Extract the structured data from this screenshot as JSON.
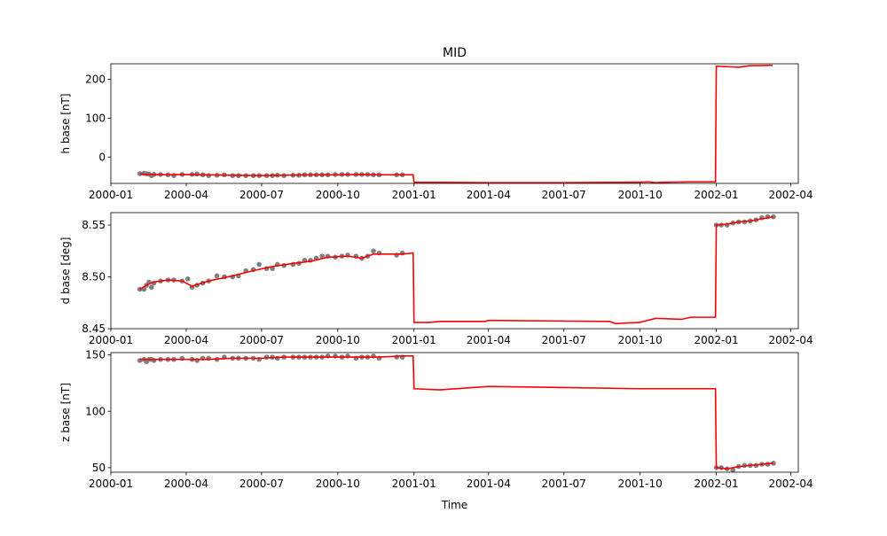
{
  "title": "MID",
  "xlabel": "Time",
  "x_ticks": [
    "2000-01",
    "2000-04",
    "2000-07",
    "2000-10",
    "2001-01",
    "2001-04",
    "2001-07",
    "2001-10",
    "2002-01",
    "2002-04"
  ],
  "colors": {
    "scatter": "#808080",
    "line": "#ff0000",
    "axes": "#000000"
  },
  "chart_data": [
    {
      "type": "scatter",
      "panel": "h",
      "ylabel": "h base [nT]",
      "xlim": [
        "2000-01-01",
        "2002-04-10"
      ],
      "ylim": [
        -68,
        240
      ],
      "yticks": [
        0,
        100,
        200
      ],
      "ytick_labels": [
        "0",
        "100",
        "200"
      ],
      "grid": false,
      "series": [
        {
          "kind": "points",
          "x": [
            "2000-02-05",
            "2000-02-10",
            "2000-02-13",
            "2000-02-16",
            "2000-02-19",
            "2000-02-22",
            "2000-03-01",
            "2000-03-10",
            "2000-03-17",
            "2000-03-27",
            "2000-04-08",
            "2000-04-14",
            "2000-04-21",
            "2000-04-28",
            "2000-05-08",
            "2000-05-17",
            "2000-05-27",
            "2000-06-03",
            "2000-06-12",
            "2000-06-21",
            "2000-06-28",
            "2000-07-07",
            "2000-07-14",
            "2000-07-20",
            "2000-07-28",
            "2000-08-08",
            "2000-08-15",
            "2000-08-22",
            "2000-08-29",
            "2000-09-05",
            "2000-09-12",
            "2000-09-19",
            "2000-09-28",
            "2000-10-06",
            "2000-10-13",
            "2000-10-23",
            "2000-10-30",
            "2000-11-06",
            "2000-11-13",
            "2000-11-20",
            "2000-12-11",
            "2000-12-18"
          ],
          "y": [
            -43,
            -42,
            -43,
            -44,
            -48,
            -45,
            -45,
            -46,
            -48,
            -45,
            -45,
            -44,
            -46,
            -48,
            -47,
            -46,
            -48,
            -48,
            -48,
            -48,
            -48,
            -48,
            -48,
            -47,
            -48,
            -47,
            -47,
            -46,
            -46,
            -46,
            -46,
            -46,
            -45,
            -45,
            -45,
            -45,
            -45,
            -45,
            -46,
            -46,
            -46,
            -46
          ]
        },
        {
          "kind": "line",
          "x": [
            "2000-02-05",
            "2000-02-13",
            "2000-02-22",
            "2000-03-10",
            "2000-03-27",
            "2000-04-21",
            "2000-05-27",
            "2000-06-28",
            "2000-07-28",
            "2000-08-29",
            "2000-09-28",
            "2000-10-30",
            "2000-11-20",
            "2000-12-18",
            "2000-12-31",
            "2001-01-01",
            "2001-04-01",
            "2001-07-01",
            "2001-09-25",
            "2001-10-01",
            "2001-10-10",
            "2001-10-20",
            "2001-11-01",
            "2001-12-01",
            "2001-12-31",
            "2002-01-01",
            "2002-01-10",
            "2002-01-20",
            "2002-01-28",
            "2002-02-10",
            "2002-03-10"
          ],
          "y": [
            -44,
            -45,
            -45,
            -46,
            -45,
            -46,
            -47,
            -48,
            -47,
            -46,
            -46,
            -45,
            -46,
            -46,
            -46,
            -65,
            -66,
            -66,
            -65,
            -65,
            -64,
            -66,
            -65,
            -64,
            -64,
            234,
            233,
            232,
            231,
            235,
            236
          ]
        }
      ]
    },
    {
      "type": "scatter",
      "panel": "d",
      "ylabel": "d base [deg]",
      "xlim": [
        "2000-01-01",
        "2002-04-10"
      ],
      "ylim": [
        8.45,
        8.562
      ],
      "yticks": [
        8.45,
        8.5,
        8.55
      ],
      "ytick_labels": [
        "8.45",
        "8.50",
        "8.55"
      ],
      "grid": false,
      "series": [
        {
          "kind": "points",
          "x": [
            "2000-02-05",
            "2000-02-10",
            "2000-02-13",
            "2000-02-16",
            "2000-02-19",
            "2000-02-22",
            "2000-03-01",
            "2000-03-10",
            "2000-03-17",
            "2000-03-27",
            "2000-04-03",
            "2000-04-08",
            "2000-04-14",
            "2000-04-21",
            "2000-04-28",
            "2000-05-08",
            "2000-05-17",
            "2000-05-27",
            "2000-06-03",
            "2000-06-12",
            "2000-06-21",
            "2000-06-28",
            "2000-07-07",
            "2000-07-14",
            "2000-07-20",
            "2000-07-28",
            "2000-08-08",
            "2000-08-15",
            "2000-08-22",
            "2000-08-29",
            "2000-09-05",
            "2000-09-12",
            "2000-09-19",
            "2000-09-28",
            "2000-10-06",
            "2000-10-13",
            "2000-10-23",
            "2000-10-30",
            "2000-11-06",
            "2000-11-13",
            "2000-11-20",
            "2000-12-11",
            "2000-12-18",
            "2002-01-01",
            "2002-01-07",
            "2002-01-14",
            "2002-01-21",
            "2002-01-28",
            "2002-02-04",
            "2002-02-11",
            "2002-02-18",
            "2002-02-25",
            "2002-03-04",
            "2002-03-11"
          ],
          "y": [
            8.488,
            8.488,
            8.492,
            8.495,
            8.49,
            8.494,
            8.496,
            8.497,
            8.497,
            8.496,
            8.498,
            8.49,
            8.492,
            8.494,
            8.496,
            8.501,
            8.5,
            8.5,
            8.501,
            8.506,
            8.507,
            8.512,
            8.508,
            8.508,
            8.512,
            8.511,
            8.512,
            8.513,
            8.516,
            8.516,
            8.518,
            8.52,
            8.52,
            8.519,
            8.52,
            8.521,
            8.52,
            8.518,
            8.52,
            8.525,
            8.523,
            8.521,
            8.523,
            8.55,
            8.55,
            8.55,
            8.552,
            8.553,
            8.553,
            8.554,
            8.555,
            8.557,
            8.558,
            8.558
          ]
        },
        {
          "kind": "line",
          "x": [
            "2000-02-05",
            "2000-02-13",
            "2000-02-22",
            "2000-03-10",
            "2000-03-27",
            "2000-04-08",
            "2000-04-28",
            "2000-05-27",
            "2000-06-21",
            "2000-07-14",
            "2000-08-08",
            "2000-08-29",
            "2000-09-19",
            "2000-10-13",
            "2000-10-30",
            "2000-11-13",
            "2000-12-18",
            "2000-12-31",
            "2001-01-01",
            "2001-01-20",
            "2001-02-01",
            "2001-03-28",
            "2001-04-01",
            "2001-08-25",
            "2001-09-01",
            "2001-09-30",
            "2001-10-10",
            "2001-10-20",
            "2001-11-20",
            "2001-12-01",
            "2001-12-31",
            "2002-01-01",
            "2002-01-14",
            "2002-01-28",
            "2002-02-11",
            "2002-02-25",
            "2002-03-11"
          ],
          "y": [
            8.488,
            8.492,
            8.495,
            8.497,
            8.496,
            8.491,
            8.496,
            8.501,
            8.506,
            8.51,
            8.513,
            8.515,
            8.519,
            8.52,
            8.518,
            8.522,
            8.522,
            8.523,
            8.456,
            8.456,
            8.457,
            8.457,
            8.458,
            8.457,
            8.455,
            8.456,
            8.458,
            8.46,
            8.459,
            8.461,
            8.461,
            8.55,
            8.551,
            8.553,
            8.554,
            8.556,
            8.558
          ]
        }
      ]
    },
    {
      "type": "scatter",
      "panel": "z",
      "ylabel": "z base [nT]",
      "xlim": [
        "2000-01-01",
        "2002-04-10"
      ],
      "ylim": [
        46,
        152
      ],
      "yticks": [
        50,
        100,
        150
      ],
      "ytick_labels": [
        "50",
        "100",
        "150"
      ],
      "grid": false,
      "series": [
        {
          "kind": "points",
          "x": [
            "2000-02-05",
            "2000-02-10",
            "2000-02-13",
            "2000-02-16",
            "2000-02-19",
            "2000-02-22",
            "2000-03-01",
            "2000-03-10",
            "2000-03-17",
            "2000-03-27",
            "2000-04-08",
            "2000-04-14",
            "2000-04-21",
            "2000-04-28",
            "2000-05-08",
            "2000-05-17",
            "2000-05-27",
            "2000-06-03",
            "2000-06-12",
            "2000-06-21",
            "2000-06-28",
            "2000-07-07",
            "2000-07-14",
            "2000-07-20",
            "2000-07-28",
            "2000-08-08",
            "2000-08-15",
            "2000-08-22",
            "2000-08-29",
            "2000-09-05",
            "2000-09-12",
            "2000-09-19",
            "2000-09-28",
            "2000-10-06",
            "2000-10-13",
            "2000-10-23",
            "2000-10-30",
            "2000-11-06",
            "2000-11-13",
            "2000-11-20",
            "2000-12-11",
            "2000-12-18",
            "2002-01-01",
            "2002-01-07",
            "2002-01-14",
            "2002-01-21",
            "2002-01-28",
            "2002-02-04",
            "2002-02-11",
            "2002-02-18",
            "2002-02-25",
            "2002-03-04",
            "2002-03-11"
          ],
          "y": [
            145,
            146,
            144,
            146,
            146,
            145,
            146,
            146,
            146,
            147,
            146,
            145,
            147,
            147,
            146,
            148,
            147,
            147,
            147,
            147,
            146,
            148,
            148,
            147,
            148,
            148,
            148,
            148,
            148,
            148,
            148,
            149,
            149,
            148,
            149,
            147,
            148,
            148,
            149,
            147,
            148,
            148,
            50,
            50,
            49,
            48,
            51,
            52,
            52,
            52,
            53,
            53,
            54
          ]
        },
        {
          "kind": "line",
          "x": [
            "2000-02-05",
            "2000-02-22",
            "2000-03-27",
            "2000-04-28",
            "2000-05-27",
            "2000-06-28",
            "2000-07-28",
            "2000-08-29",
            "2000-09-28",
            "2000-10-30",
            "2000-11-20",
            "2000-12-18",
            "2000-12-31",
            "2001-01-01",
            "2001-02-01",
            "2001-04-01",
            "2001-07-01",
            "2001-10-01",
            "2001-11-01",
            "2001-12-31",
            "2002-01-01",
            "2002-01-14",
            "2002-01-28",
            "2002-02-11",
            "2002-03-11"
          ],
          "y": [
            146,
            146,
            146,
            146,
            147,
            147,
            148,
            148,
            148,
            148,
            148,
            149,
            149,
            120,
            119,
            122,
            121,
            120,
            120,
            120,
            50,
            49,
            51,
            52,
            54
          ]
        }
      ]
    }
  ]
}
